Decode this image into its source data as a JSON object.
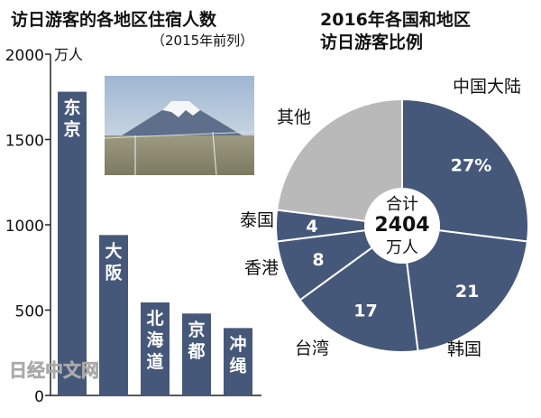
{
  "colors": {
    "bar": "#46587a",
    "pie_other": "#b9b9b9",
    "pie_main": "#46587a",
    "text": "#111111",
    "watermark": "#bdbdbd"
  },
  "watermark": "日经中文网",
  "chart_data": [
    {
      "type": "bar",
      "title": "访日游客的各地区住宿人数",
      "subtitle": "（2015年前列）",
      "ylabel": "万人",
      "ylim": [
        0,
        2000
      ],
      "yticks": [
        "0",
        "500",
        "1000",
        "1500",
        "2000"
      ],
      "categories": [
        "东京",
        "大阪",
        "北海道",
        "京都",
        "冲绳"
      ],
      "values": [
        1780,
        940,
        545,
        480,
        395
      ],
      "grid": false,
      "legend": "none"
    },
    {
      "type": "pie",
      "title": "2016年各国和地区访日游客比例",
      "center_label": "合计",
      "center_value": "2404",
      "center_unit": "万人",
      "categories": [
        "中国大陆",
        "韩国",
        "台湾",
        "香港",
        "泰国",
        "其他"
      ],
      "values": [
        27,
        21,
        17,
        8,
        4,
        23
      ],
      "value_labels": [
        "27%",
        "21",
        "17",
        "8",
        "4",
        ""
      ],
      "legend": "none"
    }
  ]
}
